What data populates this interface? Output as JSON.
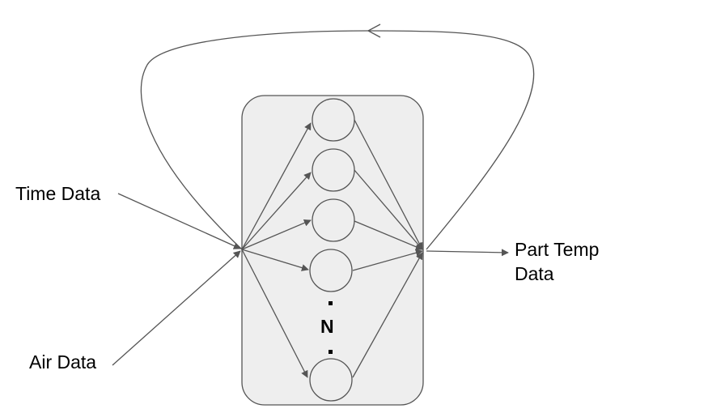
{
  "inputs": [
    {
      "label": "Time Data"
    },
    {
      "label": "Air Data"
    }
  ],
  "output": {
    "line1": "Part Temp",
    "line2": "Data"
  },
  "hidden_layer": {
    "neuron_count_label": "N",
    "visible_neurons": 5
  },
  "colors": {
    "stroke": "#555555",
    "box_fill": "#eeeeee",
    "neuron_fill": "#eeeeee",
    "text": "#000000"
  }
}
